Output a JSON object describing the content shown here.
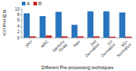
{
  "chart_data": {
    "type": "bar",
    "categories": [
      "SNV",
      "MSC",
      "Savitzky\nGolay",
      "Raw",
      "2nd\nDerivative",
      "1st\nDerivative",
      "SG+\nNormalize"
    ],
    "series": [
      {
        "name": "A",
        "color": "#2874be",
        "values": [
          8.5,
          7.5,
          9.0,
          4.5,
          9.2,
          9.2,
          8.8
        ]
      },
      {
        "name": "R",
        "color": "#cc2222",
        "values": [
          0.5,
          0.8,
          0.5,
          0.5,
          0.5,
          0.4,
          0.4
        ]
      }
    ],
    "xlabel": "Different Pre-processing techniques",
    "ylabel": "RMSECV",
    "ylim": [
      0,
      10
    ],
    "yticks": [
      0,
      2,
      4,
      6,
      8,
      10
    ],
    "grid": false,
    "legend": "upper left"
  }
}
